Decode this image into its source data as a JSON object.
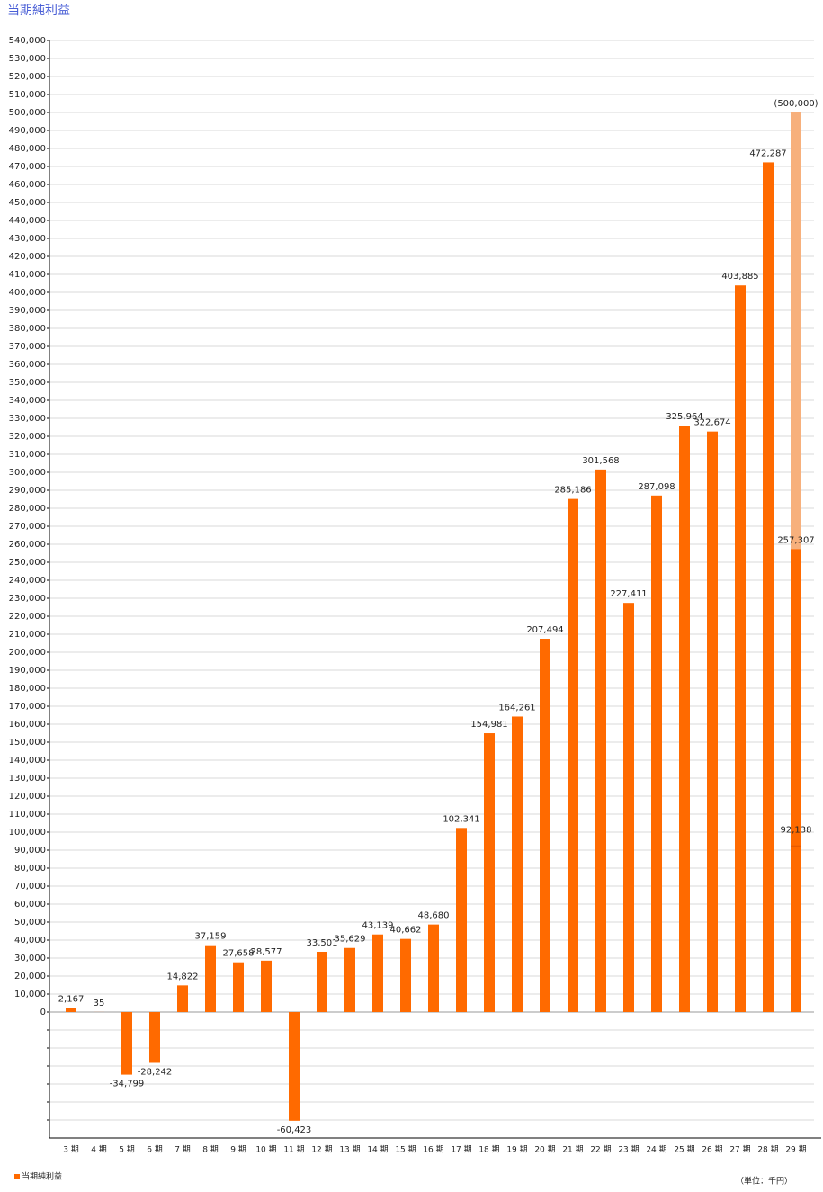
{
  "chart_data": {
    "type": "bar",
    "title": "当期純利益",
    "note": "（単位：千円）",
    "categories": [
      "3 期",
      "4 期",
      "5 期",
      "6 期",
      "7 期",
      "8 期",
      "9 期",
      "10 期",
      "11 期",
      "12 期",
      "13 期",
      "14 期",
      "15 期",
      "16 期",
      "17 期",
      "18 期",
      "19 期",
      "20 期",
      "21 期",
      "22 期",
      "23 期",
      "24 期",
      "25 期",
      "26 期",
      "27 期",
      "28 期",
      "29 期"
    ],
    "series": [
      {
        "name": "当期純利益",
        "color": "#ff6a00",
        "values": [
          2167,
          35,
          -34799,
          -28242,
          14822,
          37159,
          27658,
          28577,
          -60423,
          33501,
          35629,
          43139,
          40662,
          48680,
          102341,
          154981,
          164261,
          207494,
          285186,
          301568,
          227411,
          287098,
          325964,
          322674,
          403885,
          472287,
          257307
        ],
        "value_labels": [
          "2,167",
          "35",
          "-34,799",
          "-28,242",
          "14,822",
          "37,159",
          "27,658",
          "28,577",
          "-60,423",
          "33,501",
          "35,629",
          "43,139",
          "40,662",
          "48,680",
          "102,341",
          "154,981",
          "164,261",
          "207,494",
          "285,186",
          "301,568",
          "227,411",
          "287,098",
          "325,964",
          "322,674",
          "403,885",
          "472,287",
          "257,307"
        ]
      },
      {
        "color": "#f7b07c",
        "values": [
          null,
          null,
          null,
          null,
          null,
          null,
          null,
          null,
          null,
          null,
          null,
          null,
          null,
          null,
          null,
          null,
          null,
          null,
          null,
          null,
          null,
          null,
          null,
          null,
          null,
          null,
          500000
        ],
        "value_labels": [
          null,
          null,
          null,
          null,
          null,
          null,
          null,
          null,
          null,
          null,
          null,
          null,
          null,
          null,
          null,
          null,
          null,
          null,
          null,
          null,
          null,
          null,
          null,
          null,
          null,
          null,
          "(500,000)"
        ]
      },
      {
        "color": "#e85a00",
        "values": [
          null,
          null,
          null,
          null,
          null,
          null,
          null,
          null,
          null,
          null,
          null,
          null,
          null,
          null,
          null,
          null,
          null,
          null,
          null,
          null,
          null,
          null,
          null,
          null,
          null,
          null,
          92138
        ],
        "value_labels": [
          null,
          null,
          null,
          null,
          null,
          null,
          null,
          null,
          null,
          null,
          null,
          null,
          null,
          null,
          null,
          null,
          null,
          null,
          null,
          null,
          null,
          null,
          null,
          null,
          null,
          null,
          "92,138"
        ]
      }
    ],
    "ylim": [
      -70000,
      540000
    ],
    "yticks": [
      0,
      {
        "value": 10000,
        "label": "10,000"
      },
      {
        "value": 20000,
        "label": "20,000"
      },
      {
        "value": 30000,
        "label": "30,000"
      },
      {
        "value": 40000,
        "label": "40,000"
      },
      {
        "value": 50000,
        "label": "50,000"
      },
      {
        "value": 60000,
        "label": "60,000"
      },
      {
        "value": 70000,
        "label": "70,000"
      },
      {
        "value": 80000,
        "label": "80,000"
      },
      {
        "value": 90000,
        "label": "90,000"
      },
      {
        "value": 100000,
        "label": "100,000"
      },
      {
        "value": 110000,
        "label": "110,000"
      },
      {
        "value": 120000,
        "label": "120,000"
      },
      {
        "value": 130000,
        "label": "130,000"
      },
      {
        "value": 140000,
        "label": "140,000"
      },
      {
        "value": 150000,
        "label": "150,000"
      },
      {
        "value": 160000,
        "label": "160,000"
      },
      {
        "value": 170000,
        "label": "170,000"
      },
      {
        "value": 180000,
        "label": "180,000"
      },
      {
        "value": 190000,
        "label": "190,000"
      },
      {
        "value": 200000,
        "label": "200,000"
      },
      {
        "value": 210000,
        "label": "210,000"
      },
      {
        "value": 220000,
        "label": "220,000"
      },
      {
        "value": 230000,
        "label": "230,000"
      },
      {
        "value": 240000,
        "label": "240,000"
      },
      {
        "value": 250000,
        "label": "250,000"
      },
      {
        "value": 260000,
        "label": "260,000"
      },
      {
        "value": 270000,
        "label": "270,000"
      },
      {
        "value": 280000,
        "label": "280,000"
      },
      {
        "value": 290000,
        "label": "290,000"
      },
      {
        "value": 300000,
        "label": "300,000"
      },
      {
        "value": 310000,
        "label": "310,000"
      },
      {
        "value": 320000,
        "label": "320,000"
      },
      {
        "value": 330000,
        "label": "330,000"
      },
      {
        "value": 340000,
        "label": "340,000"
      },
      {
        "value": 350000,
        "label": "350,000"
      },
      {
        "value": 360000,
        "label": "360,000"
      },
      {
        "value": 370000,
        "label": "370,000"
      },
      {
        "value": 380000,
        "label": "380,000"
      },
      {
        "value": 390000,
        "label": "390,000"
      },
      {
        "value": 400000,
        "label": "400,000"
      },
      {
        "value": 410000,
        "label": "410,000"
      },
      {
        "value": 420000,
        "label": "420,000"
      },
      {
        "value": 430000,
        "label": "430,000"
      },
      {
        "value": 440000,
        "label": "440,000"
      },
      {
        "value": 450000,
        "label": "450,000"
      },
      {
        "value": 460000,
        "label": "460,000"
      },
      {
        "value": 470000,
        "label": "470,000"
      },
      {
        "value": 480000,
        "label": "480,000"
      },
      {
        "value": 490000,
        "label": "490,000"
      },
      {
        "value": 500000,
        "label": "500,000"
      },
      {
        "value": 510000,
        "label": "510,000"
      },
      {
        "value": 520000,
        "label": "520,000"
      },
      {
        "value": 530000,
        "label": "530,000"
      },
      {
        "value": 540000,
        "label": "540,000"
      }
    ],
    "yticks_unlabeled": [
      -10000,
      -20000,
      -30000,
      -40000,
      -50000,
      -60000
    ],
    "grid": true,
    "legend": "bottom-left"
  }
}
